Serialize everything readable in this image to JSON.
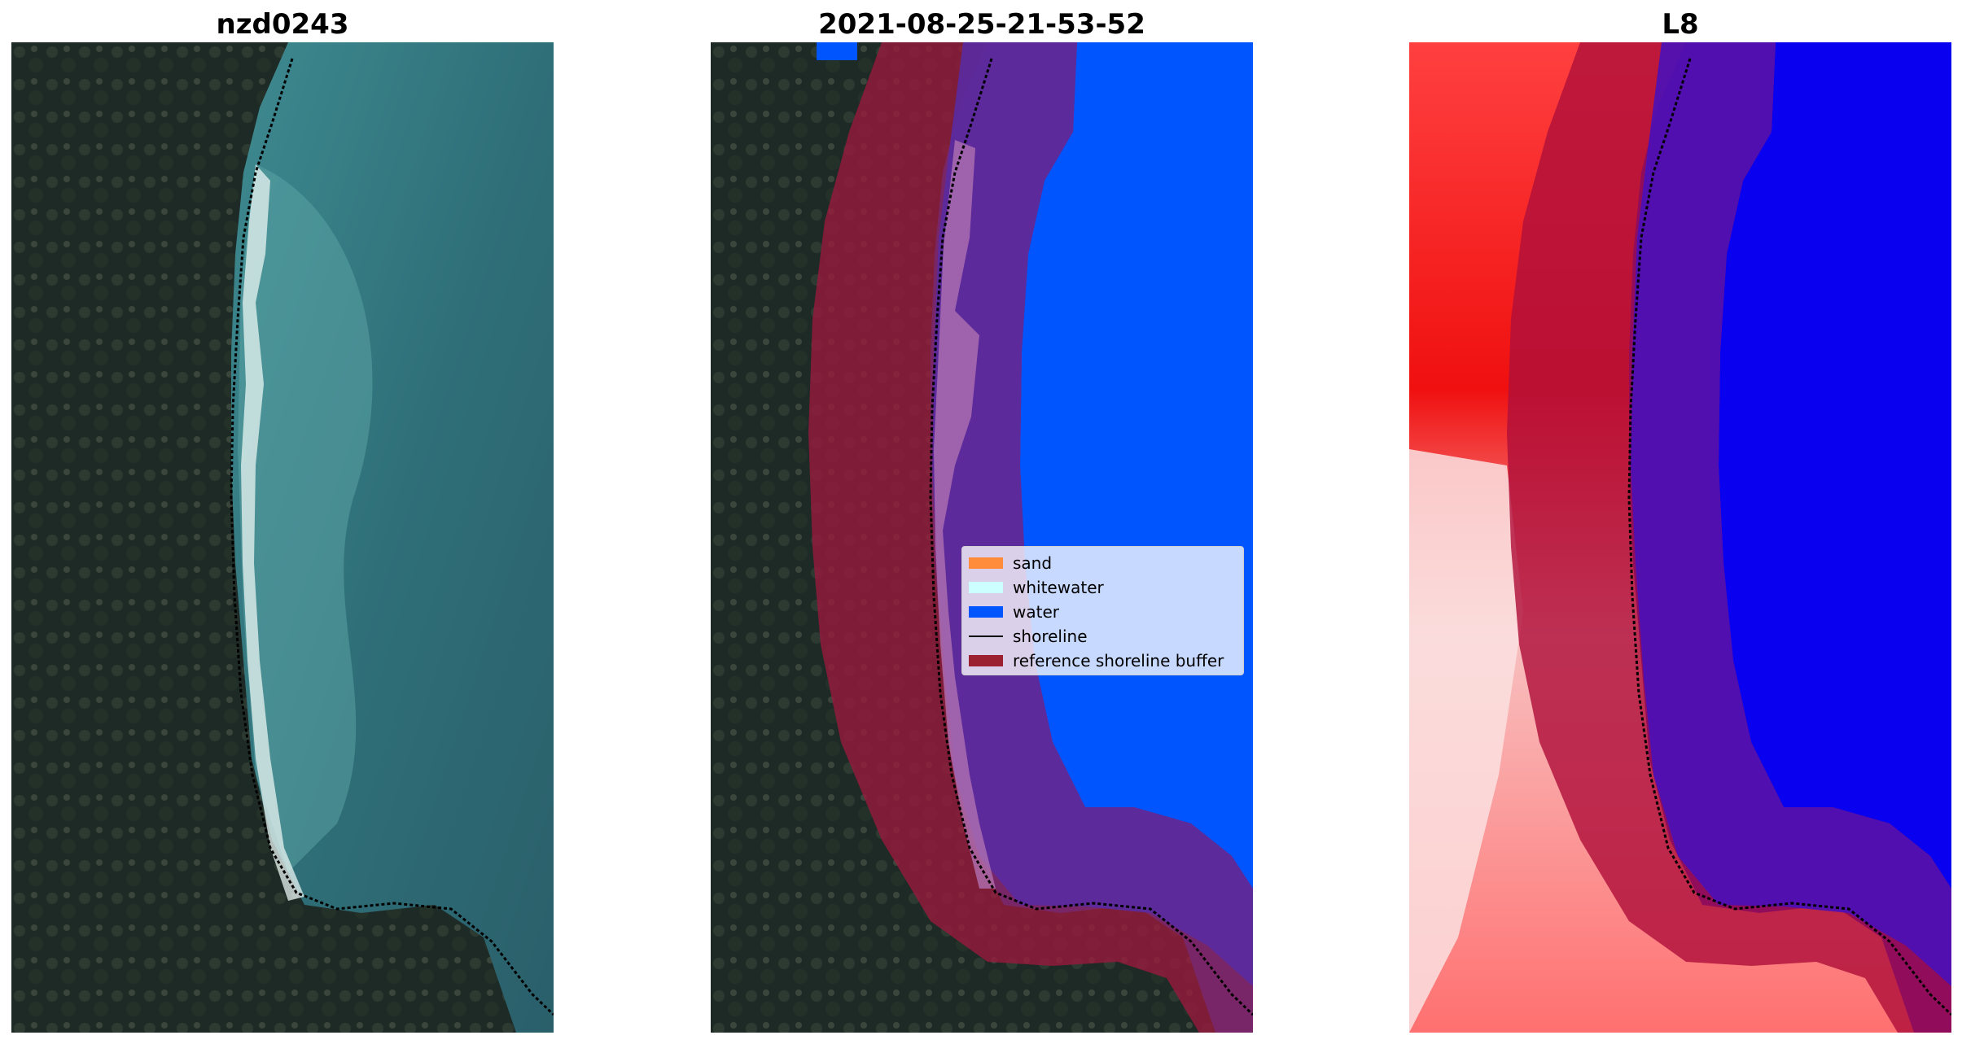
{
  "panels": [
    {
      "title": "nzd0243"
    },
    {
      "title": "2021-08-25-21-53-52"
    },
    {
      "title": "L8"
    }
  ],
  "legend": {
    "items": [
      {
        "label": "sand",
        "color": "#ff8c3a",
        "kind": "patch"
      },
      {
        "label": "whitewater",
        "color": "#ccffff",
        "kind": "patch"
      },
      {
        "label": "water",
        "color": "#0055ff",
        "kind": "patch"
      },
      {
        "label": "shoreline",
        "color": "#000000",
        "kind": "line"
      },
      {
        "label": "reference shoreline buffer",
        "color": "#9b2030",
        "kind": "patch"
      }
    ]
  },
  "colors": {
    "land_dark": "#1e2a26",
    "land_mid": "#2f3c34",
    "sea": "#2f6f78",
    "sea_light": "#4f9aa0",
    "surf": "#e8f4f2",
    "buffer_red": "#9b1a3e",
    "water_blue": "#0055ff",
    "index_blue": "#0a00f0",
    "index_red": "#ff1a1a",
    "index_pink": "#f8c8c8"
  }
}
